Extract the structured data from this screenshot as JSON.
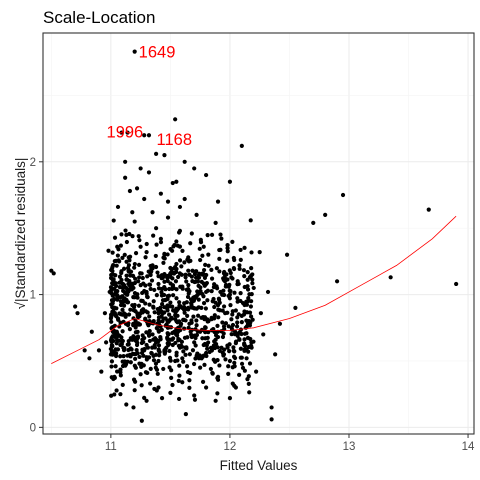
{
  "chart_data": {
    "type": "scatter",
    "title": "Scale-Location",
    "xlabel": "Fitted Values",
    "ylabel": "√|Standardized residuals|",
    "xlim": [
      10.43,
      14.05
    ],
    "ylim": [
      -0.05,
      2.97
    ],
    "x_ticks": [
      11,
      12,
      13,
      14
    ],
    "y_ticks": [
      0,
      1,
      2
    ],
    "grid": true,
    "point_color": "#000000",
    "smooth_color": "#ff0000",
    "annotation_color": "#ff0000",
    "annotations": [
      {
        "label": "1649",
        "x": 11.2,
        "y": 2.83
      },
      {
        "label": "1996",
        "x": 10.93,
        "y": 2.23
      },
      {
        "label": "1168",
        "x": 11.35,
        "y": 2.17
      }
    ],
    "smooth_line": [
      {
        "x": 10.5,
        "y": 0.48
      },
      {
        "x": 10.7,
        "y": 0.57
      },
      {
        "x": 10.9,
        "y": 0.66
      },
      {
        "x": 11.05,
        "y": 0.76
      },
      {
        "x": 11.2,
        "y": 0.82
      },
      {
        "x": 11.4,
        "y": 0.77
      },
      {
        "x": 11.6,
        "y": 0.74
      },
      {
        "x": 11.8,
        "y": 0.73
      },
      {
        "x": 12.0,
        "y": 0.73
      },
      {
        "x": 12.2,
        "y": 0.75
      },
      {
        "x": 12.5,
        "y": 0.82
      },
      {
        "x": 12.8,
        "y": 0.92
      },
      {
        "x": 13.1,
        "y": 1.07
      },
      {
        "x": 13.4,
        "y": 1.22
      },
      {
        "x": 13.7,
        "y": 1.42
      },
      {
        "x": 13.9,
        "y": 1.59
      }
    ],
    "points": [
      [
        10.5,
        1.18
      ],
      [
        10.52,
        1.16
      ],
      [
        10.7,
        0.91
      ],
      [
        10.72,
        0.86
      ],
      [
        10.78,
        0.58
      ],
      [
        10.82,
        0.52
      ],
      [
        10.84,
        0.72
      ],
      [
        10.9,
        0.58
      ],
      [
        10.92,
        0.42
      ],
      [
        10.95,
        0.86
      ],
      [
        10.96,
        0.64
      ],
      [
        10.98,
        1.33
      ],
      [
        10.99,
        1.02
      ],
      [
        11.0,
        0.55
      ],
      [
        11.02,
        1.15
      ],
      [
        11.03,
        0.38
      ],
      [
        11.05,
        0.72
      ],
      [
        11.06,
        1.66
      ],
      [
        11.07,
        1.25
      ],
      [
        11.08,
        0.25
      ],
      [
        11.09,
        2.22
      ],
      [
        11.1,
        1.05
      ],
      [
        11.12,
        2.0
      ],
      [
        11.12,
        0.48
      ],
      [
        11.13,
        1.45
      ],
      [
        11.14,
        2.22
      ],
      [
        11.15,
        0.65
      ],
      [
        11.16,
        1.78
      ],
      [
        11.18,
        0.92
      ],
      [
        11.19,
        0.15
      ],
      [
        11.2,
        2.83
      ],
      [
        11.2,
        1.55
      ],
      [
        11.22,
        0.62
      ],
      [
        11.23,
        1.1
      ],
      [
        11.25,
        1.95
      ],
      [
        11.26,
        0.05
      ],
      [
        11.28,
        2.2
      ],
      [
        11.3,
        1.32
      ],
      [
        11.31,
        0.78
      ],
      [
        11.32,
        2.2
      ],
      [
        11.33,
        0.33
      ],
      [
        11.35,
        1.62
      ],
      [
        11.36,
        0.95
      ],
      [
        11.38,
        2.06
      ],
      [
        11.4,
        0.5
      ],
      [
        11.42,
        1.42
      ],
      [
        11.43,
        0.22
      ],
      [
        11.45,
        2.05
      ],
      [
        11.46,
        0.82
      ],
      [
        11.48,
        1.7
      ],
      [
        11.5,
        1.2
      ],
      [
        11.52,
        0.62
      ],
      [
        11.54,
        2.32
      ],
      [
        11.55,
        1.85
      ],
      [
        11.57,
        0.35
      ],
      [
        11.58,
        1.48
      ],
      [
        11.6,
        0.9
      ],
      [
        11.62,
        2.0
      ],
      [
        11.63,
        0.1
      ],
      [
        11.65,
        1.28
      ],
      [
        11.67,
        0.72
      ],
      [
        11.7,
        1.95
      ],
      [
        11.72,
        1.6
      ],
      [
        11.75,
        0.45
      ],
      [
        11.77,
        1.15
      ],
      [
        11.8,
        1.9
      ],
      [
        11.82,
        0.8
      ],
      [
        11.85,
        1.45
      ],
      [
        11.88,
        0.2
      ],
      [
        11.9,
        1.7
      ],
      [
        11.92,
        1.02
      ],
      [
        11.95,
        0.55
      ],
      [
        11.98,
        1.35
      ],
      [
        12.0,
        1.85
      ],
      [
        12.02,
        0.85
      ],
      [
        12.05,
        0.3
      ],
      [
        12.08,
        1.22
      ],
      [
        12.1,
        2.12
      ],
      [
        12.12,
        0.62
      ],
      [
        12.15,
        0.95
      ],
      [
        12.2,
        1.05
      ],
      [
        12.22,
        0.42
      ],
      [
        12.25,
        1.32
      ],
      [
        12.28,
        0.7
      ],
      [
        12.32,
        1.02
      ],
      [
        12.35,
        0.15
      ],
      [
        12.38,
        0.55
      ],
      [
        12.42,
        0.78
      ],
      [
        12.48,
        1.3
      ],
      [
        12.55,
        0.9
      ],
      [
        12.7,
        1.54
      ],
      [
        12.8,
        1.6
      ],
      [
        12.9,
        1.1
      ],
      [
        12.95,
        1.75
      ],
      [
        13.35,
        1.13
      ],
      [
        13.67,
        1.64
      ],
      [
        13.9,
        1.08
      ],
      [
        12.35,
        0.06
      ],
      [
        11.25,
        0.4
      ],
      [
        11.3,
        0.62
      ],
      [
        11.35,
        0.7
      ],
      [
        11.4,
        0.86
      ],
      [
        11.45,
        0.58
      ],
      [
        11.5,
        0.66
      ],
      [
        11.55,
        0.74
      ],
      [
        11.6,
        0.52
      ],
      [
        11.65,
        0.9
      ],
      [
        11.7,
        0.64
      ],
      [
        11.75,
        0.72
      ],
      [
        11.8,
        0.56
      ],
      [
        11.85,
        0.82
      ],
      [
        11.9,
        0.68
      ],
      [
        11.95,
        0.76
      ],
      [
        12.0,
        0.5
      ],
      [
        12.05,
        0.88
      ],
      [
        11.2,
        0.98
      ],
      [
        11.3,
        1.02
      ],
      [
        11.4,
        1.08
      ],
      [
        11.5,
        0.94
      ],
      [
        11.6,
        1.06
      ],
      [
        11.7,
        0.98
      ],
      [
        11.8,
        1.02
      ],
      [
        11.9,
        0.92
      ],
      [
        12.0,
        1.0
      ],
      [
        11.15,
        1.28
      ],
      [
        11.25,
        1.36
      ],
      [
        11.35,
        1.22
      ],
      [
        11.45,
        1.3
      ],
      [
        11.55,
        1.4
      ],
      [
        11.65,
        1.18
      ],
      [
        11.75,
        1.26
      ],
      [
        11.85,
        1.12
      ],
      [
        11.95,
        1.16
      ],
      [
        11.1,
        0.32
      ],
      [
        11.2,
        0.28
      ],
      [
        11.3,
        0.2
      ],
      [
        11.4,
        0.3
      ],
      [
        11.5,
        0.26
      ],
      [
        11.6,
        0.34
      ],
      [
        11.7,
        0.24
      ],
      [
        11.8,
        0.3
      ],
      [
        11.9,
        0.38
      ],
      [
        12.0,
        0.22
      ],
      [
        11.18,
        1.62
      ],
      [
        11.28,
        1.72
      ],
      [
        11.38,
        1.5
      ],
      [
        11.48,
        1.58
      ],
      [
        11.58,
        1.66
      ],
      [
        11.68,
        1.46
      ],
      [
        11.78,
        1.36
      ],
      [
        11.88,
        1.54
      ],
      [
        11.12,
        1.88
      ],
      [
        11.22,
        1.8
      ],
      [
        11.32,
        1.92
      ],
      [
        11.42,
        1.76
      ],
      [
        11.52,
        1.84
      ],
      [
        11.62,
        1.72
      ],
      [
        11.06,
        0.82
      ],
      [
        11.16,
        0.74
      ],
      [
        11.26,
        0.88
      ],
      [
        11.36,
        0.8
      ],
      [
        11.46,
        0.96
      ],
      [
        11.56,
        0.84
      ],
      [
        11.66,
        0.78
      ],
      [
        11.76,
        0.9
      ],
      [
        11.86,
        0.74
      ],
      [
        11.96,
        0.86
      ],
      [
        12.06,
        0.76
      ],
      [
        12.16,
        0.8
      ],
      [
        12.26,
        0.86
      ],
      [
        11.04,
        0.46
      ],
      [
        11.14,
        0.54
      ],
      [
        11.24,
        0.48
      ],
      [
        11.34,
        0.56
      ],
      [
        11.44,
        0.44
      ],
      [
        11.54,
        0.5
      ],
      [
        11.64,
        0.46
      ],
      [
        11.74,
        0.52
      ],
      [
        11.84,
        0.44
      ],
      [
        11.94,
        0.56
      ],
      [
        12.04,
        0.46
      ],
      [
        12.14,
        0.52
      ],
      [
        11.08,
        0.62
      ],
      [
        11.18,
        0.66
      ],
      [
        11.28,
        0.58
      ],
      [
        11.38,
        0.64
      ],
      [
        11.48,
        0.7
      ],
      [
        11.58,
        0.6
      ],
      [
        11.68,
        0.68
      ],
      [
        11.78,
        0.62
      ],
      [
        11.88,
        0.66
      ],
      [
        11.98,
        0.6
      ],
      [
        12.08,
        0.66
      ],
      [
        12.18,
        0.64
      ]
    ]
  }
}
